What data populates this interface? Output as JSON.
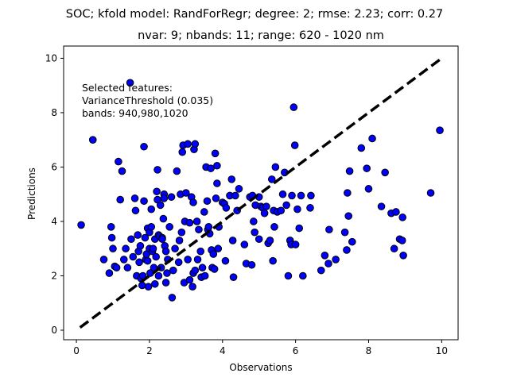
{
  "chart_data": {
    "type": "scatter",
    "title": "SOC; kfold model: RandForRegr; degree: 2; rmse: 2.23; corr: 0.27",
    "subtitle": "nvar: 9; nbands: 11; range: 620 - 1020 nm",
    "xlabel": "Observations",
    "ylabel": "Predictions",
    "xlim": [
      -0.35,
      10.45
    ],
    "ylim": [
      -0.35,
      10.45
    ],
    "xticks": [
      0,
      2,
      4,
      6,
      8,
      10
    ],
    "yticks": [
      0,
      2,
      4,
      6,
      8,
      10
    ],
    "grid": false,
    "annotation": [
      "Selected features:",
      "VarianceThreshold (0.035)",
      "bands: 940,980,1020"
    ],
    "reference_line": {
      "x": [
        0.1,
        10.0
      ],
      "y": [
        0.1,
        10.0
      ],
      "style": "dashed",
      "color": "#000000"
    },
    "marker_color": "#0000ff",
    "marker_edge": "#000000",
    "points": [
      [
        0.13,
        3.87
      ],
      [
        0.45,
        7.0
      ],
      [
        0.75,
        2.6
      ],
      [
        0.9,
        2.1
      ],
      [
        0.95,
        3.8
      ],
      [
        0.97,
        3.4
      ],
      [
        1.0,
        3.0
      ],
      [
        1.05,
        2.35
      ],
      [
        1.1,
        2.3
      ],
      [
        1.15,
        6.2
      ],
      [
        1.2,
        4.8
      ],
      [
        1.25,
        5.85
      ],
      [
        1.3,
        2.6
      ],
      [
        1.35,
        3.0
      ],
      [
        1.4,
        2.3
      ],
      [
        1.47,
        9.1
      ],
      [
        1.5,
        3.35
      ],
      [
        1.55,
        2.7
      ],
      [
        1.6,
        4.85
      ],
      [
        1.62,
        4.4
      ],
      [
        1.65,
        2.0
      ],
      [
        1.68,
        3.5
      ],
      [
        1.7,
        2.9
      ],
      [
        1.72,
        2.5
      ],
      [
        1.75,
        3.1
      ],
      [
        1.77,
        1.9
      ],
      [
        1.8,
        1.65
      ],
      [
        1.82,
        2.0
      ],
      [
        1.85,
        6.75
      ],
      [
        1.85,
        4.75
      ],
      [
        1.88,
        3.4
      ],
      [
        1.9,
        2.6
      ],
      [
        1.92,
        2.8
      ],
      [
        1.95,
        3.75
      ],
      [
        1.95,
        2.55
      ],
      [
        1.97,
        1.6
      ],
      [
        2.0,
        3.0
      ],
      [
        2.0,
        3.6
      ],
      [
        2.02,
        2.1
      ],
      [
        2.05,
        3.8
      ],
      [
        2.05,
        4.45
      ],
      [
        2.08,
        2.9
      ],
      [
        2.1,
        3.0
      ],
      [
        2.12,
        2.3
      ],
      [
        2.15,
        3.35
      ],
      [
        2.15,
        1.7
      ],
      [
        2.18,
        2.7
      ],
      [
        2.2,
        5.1
      ],
      [
        2.22,
        5.9
      ],
      [
        2.22,
        4.8
      ],
      [
        2.25,
        3.5
      ],
      [
        2.25,
        2.0
      ],
      [
        2.28,
        3.45
      ],
      [
        2.3,
        4.6
      ],
      [
        2.32,
        2.3
      ],
      [
        2.35,
        3.4
      ],
      [
        2.35,
        3.35
      ],
      [
        2.38,
        4.1
      ],
      [
        2.4,
        5.0
      ],
      [
        2.4,
        4.85
      ],
      [
        2.42,
        3.1
      ],
      [
        2.45,
        2.9
      ],
      [
        2.45,
        1.75
      ],
      [
        2.48,
        2.1
      ],
      [
        2.5,
        2.6
      ],
      [
        2.55,
        3.8
      ],
      [
        2.6,
        4.9
      ],
      [
        2.62,
        1.2
      ],
      [
        2.65,
        2.2
      ],
      [
        2.7,
        3.0
      ],
      [
        2.75,
        5.85
      ],
      [
        2.8,
        2.5
      ],
      [
        2.82,
        3.3
      ],
      [
        2.85,
        5.0
      ],
      [
        2.88,
        3.6
      ],
      [
        2.9,
        6.55
      ],
      [
        2.92,
        6.8
      ],
      [
        2.95,
        1.75
      ],
      [
        2.97,
        4.0
      ],
      [
        3.0,
        5.05
      ],
      [
        3.05,
        6.85
      ],
      [
        3.05,
        2.6
      ],
      [
        3.1,
        3.95
      ],
      [
        3.1,
        1.85
      ],
      [
        3.15,
        4.9
      ],
      [
        3.18,
        1.6
      ],
      [
        3.2,
        4.7
      ],
      [
        3.2,
        2.1
      ],
      [
        3.22,
        6.65
      ],
      [
        3.25,
        6.85
      ],
      [
        3.25,
        2.2
      ],
      [
        3.3,
        4.0
      ],
      [
        3.32,
        2.6
      ],
      [
        3.35,
        3.7
      ],
      [
        3.4,
        2.9
      ],
      [
        3.42,
        1.95
      ],
      [
        3.45,
        2.3
      ],
      [
        3.5,
        4.35
      ],
      [
        3.52,
        2.0
      ],
      [
        3.55,
        6.0
      ],
      [
        3.58,
        4.75
      ],
      [
        3.6,
        3.7
      ],
      [
        3.62,
        3.8
      ],
      [
        3.65,
        3.55
      ],
      [
        3.68,
        5.95
      ],
      [
        3.7,
        2.95
      ],
      [
        3.72,
        2.3
      ],
      [
        3.75,
        2.8
      ],
      [
        3.78,
        2.25
      ],
      [
        3.8,
        6.5
      ],
      [
        3.82,
        4.85
      ],
      [
        3.85,
        5.4
      ],
      [
        3.85,
        6.05
      ],
      [
        3.88,
        3.0
      ],
      [
        3.9,
        3.8
      ],
      [
        4.0,
        4.7
      ],
      [
        4.05,
        4.65
      ],
      [
        4.08,
        2.55
      ],
      [
        4.1,
        4.5
      ],
      [
        4.2,
        4.95
      ],
      [
        4.25,
        5.55
      ],
      [
        4.28,
        3.3
      ],
      [
        4.3,
        1.95
      ],
      [
        4.35,
        4.95
      ],
      [
        4.4,
        4.4
      ],
      [
        4.45,
        5.2
      ],
      [
        4.6,
        3.15
      ],
      [
        4.65,
        2.45
      ],
      [
        4.75,
        4.9
      ],
      [
        4.8,
        2.4
      ],
      [
        4.82,
        4.95
      ],
      [
        4.85,
        4.0
      ],
      [
        4.88,
        3.6
      ],
      [
        4.9,
        4.6
      ],
      [
        5.0,
        4.9
      ],
      [
        5.0,
        3.35
      ],
      [
        5.05,
        4.55
      ],
      [
        5.1,
        4.5
      ],
      [
        5.15,
        4.3
      ],
      [
        5.2,
        4.55
      ],
      [
        5.25,
        3.2
      ],
      [
        5.3,
        3.3
      ],
      [
        5.35,
        5.55
      ],
      [
        5.38,
        2.55
      ],
      [
        5.4,
        4.4
      ],
      [
        5.42,
        3.8
      ],
      [
        5.45,
        6.0
      ],
      [
        5.5,
        4.35
      ],
      [
        5.6,
        4.4
      ],
      [
        5.65,
        5.0
      ],
      [
        5.7,
        5.8
      ],
      [
        5.75,
        4.6
      ],
      [
        5.8,
        2.0
      ],
      [
        5.85,
        3.3
      ],
      [
        5.88,
        3.15
      ],
      [
        5.9,
        4.95
      ],
      [
        5.95,
        8.2
      ],
      [
        5.98,
        6.8
      ],
      [
        6.0,
        3.15
      ],
      [
        6.05,
        4.45
      ],
      [
        6.1,
        3.75
      ],
      [
        6.15,
        4.95
      ],
      [
        6.2,
        2.0
      ],
      [
        6.4,
        4.5
      ],
      [
        6.42,
        4.95
      ],
      [
        6.7,
        2.2
      ],
      [
        6.8,
        2.75
      ],
      [
        6.9,
        2.45
      ],
      [
        6.92,
        3.7
      ],
      [
        7.1,
        2.6
      ],
      [
        7.35,
        3.6
      ],
      [
        7.4,
        2.95
      ],
      [
        7.42,
        5.05
      ],
      [
        7.45,
        4.2
      ],
      [
        7.48,
        5.85
      ],
      [
        7.55,
        3.25
      ],
      [
        7.8,
        6.7
      ],
      [
        7.95,
        5.95
      ],
      [
        8.0,
        5.2
      ],
      [
        8.1,
        7.05
      ],
      [
        8.35,
        4.55
      ],
      [
        8.45,
        5.8
      ],
      [
        8.62,
        4.3
      ],
      [
        8.7,
        3.0
      ],
      [
        8.75,
        4.35
      ],
      [
        8.85,
        3.35
      ],
      [
        8.92,
        3.3
      ],
      [
        8.93,
        4.15
      ],
      [
        8.95,
        2.75
      ],
      [
        9.7,
        5.05
      ],
      [
        9.95,
        7.35
      ]
    ]
  }
}
